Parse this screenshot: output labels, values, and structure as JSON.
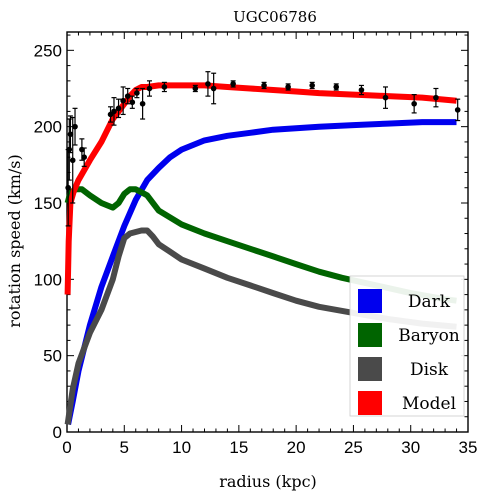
{
  "chart_data": {
    "type": "line",
    "title": "UGC06786",
    "xlabel": "radius (kpc)",
    "ylabel": "rotation speed (km/s)",
    "xlim": [
      0,
      35
    ],
    "ylim": [
      0,
      262
    ],
    "xticks": [
      0,
      5,
      10,
      15,
      20,
      25,
      30,
      35
    ],
    "yticks": [
      0,
      50,
      100,
      150,
      200,
      250
    ],
    "legend_position": "bottom-right",
    "series": [
      {
        "name": "Dark",
        "color": "#0000ee",
        "x": [
          0.1,
          0.5,
          1,
          2,
          3,
          4,
          5,
          6,
          7,
          8,
          9,
          10,
          12,
          14,
          16,
          18,
          20,
          22,
          25,
          28,
          31,
          34
        ],
        "y": [
          5,
          20,
          40,
          70,
          95,
          115,
          135,
          152,
          165,
          173,
          180,
          185,
          191,
          194,
          196,
          198,
          199,
          200,
          201,
          202,
          203,
          203
        ]
      },
      {
        "name": "Baryon",
        "color": "#006400",
        "x": [
          0.05,
          0.3,
          0.8,
          1.3,
          2,
          3,
          4,
          4.5,
          5,
          5.5,
          6,
          6.5,
          7,
          8,
          10,
          12,
          14,
          16,
          18,
          20,
          22,
          24,
          27,
          30,
          33,
          34
        ],
        "y": [
          150,
          157,
          159,
          159,
          155,
          150,
          147,
          150,
          156,
          159,
          159,
          157,
          155,
          145,
          136,
          130,
          125,
          120,
          115,
          110,
          105,
          101,
          96,
          91,
          87,
          86
        ]
      },
      {
        "name": "Disk",
        "color": "#4a4a4a",
        "x": [
          0.05,
          0.5,
          1,
          2,
          3,
          4,
          4.5,
          5,
          5.5,
          6,
          6.5,
          7,
          7.5,
          8,
          9,
          10,
          12,
          14,
          16,
          18,
          20,
          22,
          25,
          28,
          31,
          34
        ],
        "y": [
          5,
          28,
          45,
          65,
          80,
          100,
          115,
          127,
          130,
          131,
          132,
          132,
          128,
          123,
          118,
          113,
          107,
          101,
          96,
          91,
          86,
          82,
          78,
          74,
          71,
          69
        ]
      },
      {
        "name": "Model",
        "color": "#ff0000",
        "x": [
          0.05,
          0.15,
          0.3,
          0.6,
          1,
          2,
          3,
          4,
          4.5,
          5,
          5.5,
          6,
          6.5,
          7,
          8,
          10,
          12,
          14,
          16,
          18,
          20,
          22,
          25,
          28,
          31,
          34
        ],
        "y": [
          90,
          125,
          150,
          158,
          165,
          178,
          190,
          205,
          210,
          215,
          220,
          224,
          226,
          226,
          227,
          227,
          227,
          226,
          225,
          224,
          223,
          222,
          221,
          220,
          219,
          217
        ]
      }
    ],
    "observed": {
      "name": "data points",
      "color": "#000000",
      "points": [
        {
          "x": 0.1,
          "y": 160,
          "err": 25
        },
        {
          "x": 0.2,
          "y": 185,
          "err": 20
        },
        {
          "x": 0.3,
          "y": 195,
          "err": 12
        },
        {
          "x": 0.5,
          "y": 178,
          "err": 28
        },
        {
          "x": 0.7,
          "y": 200,
          "err": 12
        },
        {
          "x": 1.3,
          "y": 185,
          "err": 7
        },
        {
          "x": 1.5,
          "y": 180,
          "err": 6
        },
        {
          "x": 3.8,
          "y": 208,
          "err": 5
        },
        {
          "x": 4.1,
          "y": 210,
          "err": 9
        },
        {
          "x": 4.5,
          "y": 212,
          "err": 6
        },
        {
          "x": 4.9,
          "y": 217,
          "err": 9
        },
        {
          "x": 5.3,
          "y": 220,
          "err": 5
        },
        {
          "x": 5.7,
          "y": 216,
          "err": 4
        },
        {
          "x": 6.1,
          "y": 222,
          "err": 3
        },
        {
          "x": 6.6,
          "y": 215,
          "err": 10
        },
        {
          "x": 7.2,
          "y": 225,
          "err": 5
        },
        {
          "x": 8.5,
          "y": 226,
          "err": 3
        },
        {
          "x": 11.2,
          "y": 225,
          "err": 2
        },
        {
          "x": 12.3,
          "y": 228,
          "err": 8
        },
        {
          "x": 12.8,
          "y": 225,
          "err": 10
        },
        {
          "x": 14.5,
          "y": 228,
          "err": 2
        },
        {
          "x": 17.2,
          "y": 227,
          "err": 2
        },
        {
          "x": 19.3,
          "y": 226,
          "err": 2
        },
        {
          "x": 21.4,
          "y": 227,
          "err": 2
        },
        {
          "x": 23.5,
          "y": 226,
          "err": 2
        },
        {
          "x": 25.7,
          "y": 224,
          "err": 3
        },
        {
          "x": 27.8,
          "y": 219,
          "err": 7
        },
        {
          "x": 30.3,
          "y": 215,
          "err": 6
        },
        {
          "x": 32.2,
          "y": 219,
          "err": 6
        },
        {
          "x": 34.1,
          "y": 211,
          "err": 7
        }
      ]
    }
  }
}
